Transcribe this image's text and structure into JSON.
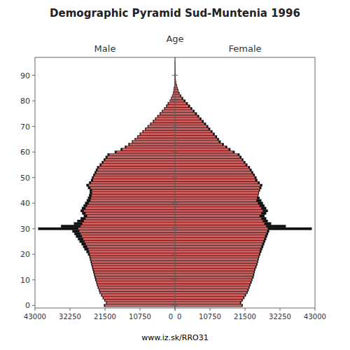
{
  "chart_data": {
    "type": "bar",
    "orientation": "horizontal",
    "title": "Demographic Pyramid Sud-Muntenia 1996",
    "y_label": "Age",
    "annotations": [
      "www.iz.sk/RRO31"
    ],
    "grid": false,
    "categories": [
      0,
      1,
      2,
      3,
      4,
      5,
      6,
      7,
      8,
      9,
      10,
      11,
      12,
      13,
      14,
      15,
      16,
      17,
      18,
      19,
      20,
      21,
      22,
      23,
      24,
      25,
      26,
      27,
      28,
      29,
      30,
      31,
      32,
      33,
      34,
      35,
      36,
      37,
      38,
      39,
      40,
      41,
      42,
      43,
      44,
      45,
      46,
      47,
      48,
      49,
      50,
      51,
      52,
      53,
      54,
      55,
      56,
      57,
      58,
      59,
      60,
      61,
      62,
      63,
      64,
      65,
      66,
      67,
      68,
      69,
      70,
      71,
      72,
      73,
      74,
      75,
      76,
      77,
      78,
      79,
      80,
      81,
      82,
      83,
      84,
      85,
      86,
      87,
      88,
      89,
      90,
      91,
      92,
      93,
      94,
      95
    ],
    "ylim": [
      -1,
      97
    ],
    "yticks": [
      0,
      10,
      20,
      30,
      40,
      50,
      60,
      70,
      80,
      90
    ],
    "panels": [
      {
        "title": "Male",
        "xlim": [
          43000,
          0
        ],
        "xticks": [
          43000,
          32250,
          21500,
          10750,
          0
        ],
        "series": [
          {
            "color": "#111111",
            "values": [
              21800,
              21200,
              21700,
              22200,
              22700,
              23200,
              23400,
              23700,
              24000,
              24200,
              24500,
              24700,
              24900,
              25100,
              25300,
              25500,
              25700,
              25900,
              26100,
              26300,
              26700,
              27200,
              27800,
              28200,
              28700,
              29300,
              29800,
              30400,
              30900,
              31500,
              42000,
              35000,
              31000,
              30000,
              29000,
              28000,
              28500,
              29000,
              28600,
              28100,
              27600,
              27100,
              26700,
              26400,
              26200,
              26200,
              26700,
              27200,
              26400,
              25800,
              25500,
              25100,
              24700,
              24300,
              23900,
              23100,
              22500,
              21900,
              21300,
              20700,
              18500,
              16700,
              15400,
              14300,
              13200,
              12400,
              11600,
              10800,
              10000,
              9200,
              8400,
              7600,
              6800,
              6100,
              5400,
              4700,
              4000,
              3300,
              2700,
              2200,
              1600,
              1200,
              880,
              620,
              450,
              310,
              210,
              135,
              80,
              46,
              27,
              15,
              9,
              6,
              3,
              2
            ]
          },
          {
            "color": "#cd5c5c",
            "values": [
              21500,
              21000,
              21500,
              22000,
              22500,
              23000,
              23200,
              23500,
              23800,
              24000,
              24200,
              24400,
              24600,
              24800,
              25000,
              25200,
              25400,
              25600,
              25800,
              26000,
              26200,
              26400,
              26600,
              27000,
              27400,
              27800,
              28200,
              28600,
              29000,
              29400,
              29700,
              29000,
              28500,
              28000,
              27500,
              27000,
              27500,
              28000,
              27500,
              27000,
              26500,
              26000,
              25800,
              25600,
              25500,
              25500,
              26000,
              26500,
              25800,
              25200,
              25000,
              24600,
              24200,
              23800,
              23400,
              22600,
              22000,
              21400,
              20800,
              20200,
              18000,
              16200,
              15000,
              14000,
              13000,
              12200,
              11400,
              10600,
              9800,
              9000,
              8200,
              7400,
              6600,
              5900,
              5200,
              4500,
              3800,
              3100,
              2500,
              2000,
              1500,
              1100,
              800,
              560,
              400,
              280,
              190,
              120,
              72,
              42,
              24,
              14,
              8,
              5,
              3,
              2
            ]
          }
        ]
      },
      {
        "title": "Female",
        "xlim": [
          0,
          43000
        ],
        "xticks": [
          0,
          10750,
          21500,
          32250,
          43000
        ],
        "series": [
          {
            "color": "#111111",
            "values": [
              20800,
              20300,
              20800,
              21300,
              21800,
              22300,
              22600,
              22900,
              23200,
              23500,
              23800,
              24100,
              24300,
              24500,
              24700,
              25000,
              25300,
              25500,
              25700,
              25900,
              26200,
              26500,
              26800,
              27100,
              27400,
              27700,
              28000,
              28300,
              28600,
              28900,
              42000,
              34000,
              29500,
              28500,
              28000,
              27500,
              28000,
              28500,
              28000,
              27500,
              27000,
              26500,
              26000,
              25600,
              25800,
              26100,
              26500,
              26800,
              26000,
              25300,
              25000,
              24500,
              24000,
              23500,
              23000,
              22200,
              21600,
              21000,
              20400,
              19800,
              18300,
              17000,
              16000,
              15000,
              14000,
              13500,
              12900,
              12200,
              11500,
              10800,
              10200,
              9500,
              8800,
              8100,
              7400,
              6700,
              6000,
              5300,
              4600,
              3900,
              3200,
              2500,
              1900,
              1400,
              1050,
              790,
              570,
              380,
              230,
              142,
              85,
              52,
              32,
              20,
              12,
              7
            ]
          },
          {
            "color": "#cd5c5c",
            "values": [
              20500,
              20000,
              20500,
              21000,
              21500,
              22000,
              22300,
              22600,
              22900,
              23200,
              23500,
              23800,
              24000,
              24200,
              24400,
              24700,
              25000,
              25200,
              25400,
              25600,
              25800,
              26000,
              26200,
              26500,
              26800,
              27100,
              27400,
              27700,
              28000,
              28300,
              28500,
              28000,
              27500,
              27000,
              26500,
              26000,
              26500,
              27000,
              26500,
              26000,
              25500,
              25000,
              25200,
              25400,
              25600,
              25800,
              26000,
              26200,
              25400,
              24700,
              24500,
              24000,
              23500,
              23000,
              22500,
              21700,
              21100,
              20500,
              19900,
              19300,
              17800,
              16500,
              15500,
              14500,
              13500,
              13000,
              12400,
              11700,
              11000,
              10300,
              9700,
              9000,
              8300,
              7600,
              6900,
              6200,
              5500,
              4800,
              4100,
              3400,
              2700,
              2100,
              1600,
              1180,
              880,
              660,
              480,
              320,
              195,
              120,
              71,
              44,
              27,
              17,
              10,
              6
            ]
          }
        ]
      }
    ]
  }
}
